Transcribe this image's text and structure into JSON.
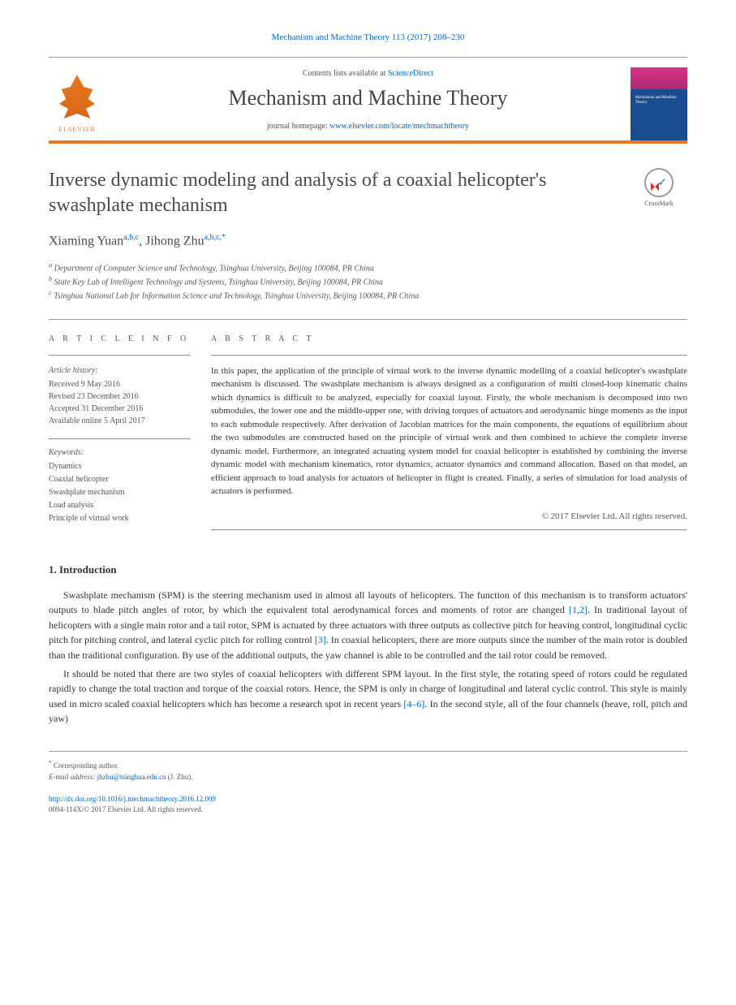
{
  "journal_ref": "Mechanism and Machine Theory 113 (2017) 208–230",
  "header": {
    "contents_prefix": "Contents lists available at ",
    "contents_link": "ScienceDirect",
    "journal_name": "Mechanism and Machine Theory",
    "homepage_prefix": "journal homepage: ",
    "homepage_url": "www.elsevier.com/locate/mechmachtheory",
    "elsevier_label": "ELSEVIER",
    "cover_label": "Mechanism and Machine Theory",
    "accent_color": "#e87722",
    "link_color": "#0066cc"
  },
  "crossmark_label": "CrossMark",
  "title": "Inverse dynamic modeling and analysis of a coaxial helicopter's swashplate mechanism",
  "authors": [
    {
      "name": "Xiaming Yuan",
      "affils": "a,b,c"
    },
    {
      "name": "Jihong Zhu",
      "affils": "a,b,c,*"
    }
  ],
  "affiliations": [
    "Department of Computer Science and Technology, Tsinghua University, Beijing 100084, PR China",
    "State Key Lab of Intelligent Technology and Systems, Tsinghua University, Beijing 100084, PR China",
    "Tsinghua National Lab for Information Science and Technology, Tsinghua University, Beijing 100084, PR China"
  ],
  "affil_markers": [
    "a",
    "b",
    "c"
  ],
  "article_info": {
    "heading": "A R T I C L E   I N F O",
    "history_label": "Article history:",
    "history": [
      "Received 9 May 2016",
      "Revised 23 December 2016",
      "Accepted 31 December 2016",
      "Available online 5 April 2017"
    ],
    "keywords_label": "Keywords:",
    "keywords": [
      "Dynamics",
      "Coaxial helicopter",
      "Swashplate mechanism",
      "Load analysis",
      "Principle of virtual work"
    ]
  },
  "abstract": {
    "heading": "A B S T R A C T",
    "text": "In this paper, the application of the principle of virtual work to the inverse dynamic modelling of a coaxial helicopter's swashplate mechanism is discussed. The swashplate mechanism is always designed as a configuration of multi closed-loop kinematic chains which dynamics is difficult to be analyzed, especially for coaxial layout. Firstly, the whole mechanism is decomposed into two submodules, the lower one and the middle-upper one, with driving torques of actuators and aerodynamic hinge moments as the input to each submodule respectively. After derivation of Jacobian matrices for the main components, the equations of equilibrium about the two submodules are constructed based on the principle of virtual work and then combined to achieve the complete inverse dynamic model. Furthermore, an integrated actuating system model for coaxial helicopter is established by combining the inverse dynamic model with mechanism kinematics, rotor dynamics, actuator dynamics and command allocation. Based on that model, an efficient approach to load analysis for actuators of helicopter in flight is created. Finally, a series of simulation for load analysis of actuators is performed.",
    "copyright": "© 2017 Elsevier Ltd. All rights reserved."
  },
  "sections": {
    "intro_heading": "1. Introduction",
    "para1_a": "Swashplate mechanism (SPM) is the steering mechanism used in almost all layouts of helicopters. The function of this mechanism is to transform actuators' outputs to blade pitch angles of rotor, by which the equivalent total aerodynamical forces and moments of rotor are changed ",
    "ref1": "[1,2]",
    "para1_b": ". In traditional layout of helicopters with a single main rotor and a tail rotor, SPM is actuated by three actuators with three outputs as collective pitch for heaving control, longitudinal cyclic pitch for pitching control, and lateral cyclic pitch for rolling control ",
    "ref2": "[3]",
    "para1_c": ". In coaxial helicopters, there are more outputs since the number of the main rotor is doubled than the traditional configuration. By use of the additional outputs, the yaw channel is able to be controlled and the tail rotor could be removed.",
    "para2_a": "It should be noted that there are two styles of coaxial helicopters with different SPM layout. In the first style, the rotating speed of rotors could be regulated rapidly to change the total traction and torque of the coaxial rotors. Hence, the SPM is only in charge of longitudinal and lateral cyclic control. This style is mainly used in micro scaled coaxial helicopters which has become a research spot in recent years ",
    "ref3": "[4–6]",
    "para2_b": ". In the second style, all of the four channels (heave, roll, pitch and yaw)"
  },
  "footer": {
    "corresponding": "Corresponding author.",
    "email_label": "E-mail address:",
    "email": "jhzhu@tsinghua.edu.cn",
    "email_suffix": "(J. Zhu).",
    "doi": "http://dx.doi.org/10.1016/j.mechmachtheory.2016.12.009",
    "issn_line": "0094-114X/© 2017 Elsevier Ltd. All rights reserved."
  }
}
